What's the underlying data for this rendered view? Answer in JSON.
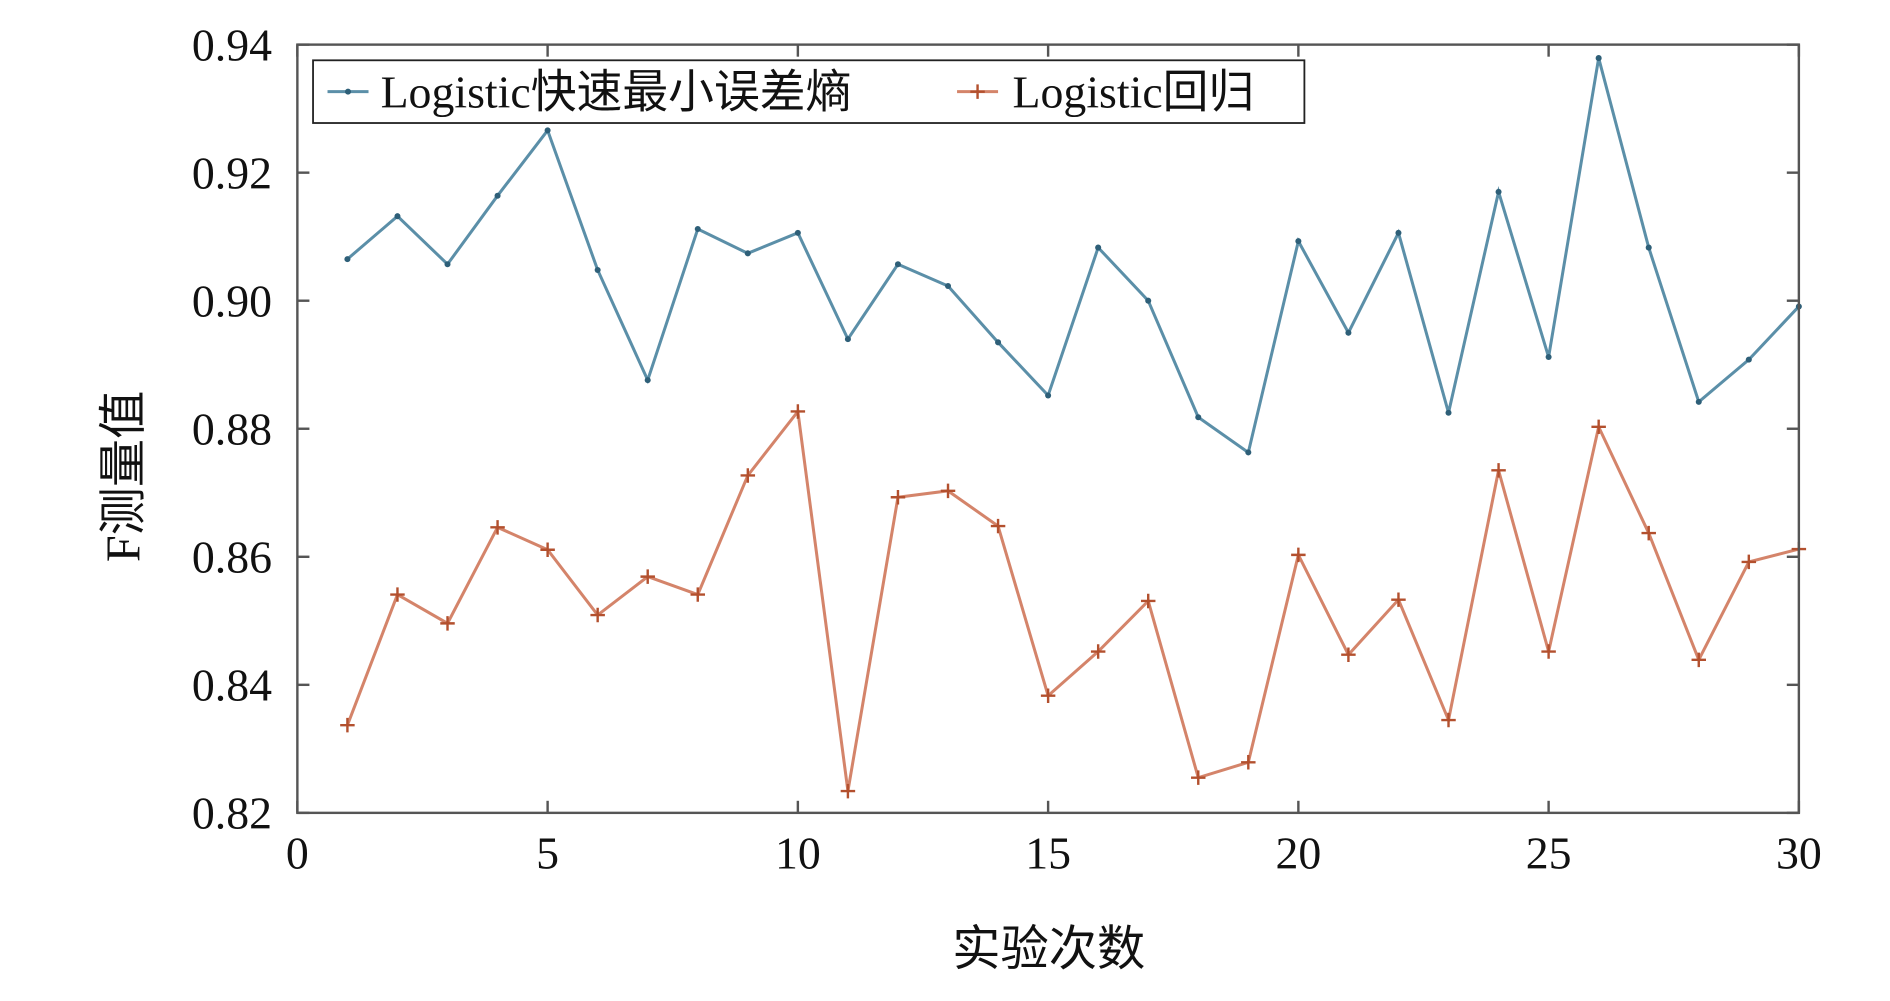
{
  "chart_data": {
    "type": "line",
    "xlabel": "实验次数",
    "ylabel": "F测量值",
    "xlim": [
      0,
      30
    ],
    "ylim": [
      0.82,
      0.94
    ],
    "xticks": [
      "0",
      "5",
      "10",
      "15",
      "20",
      "25",
      "30"
    ],
    "yticks": [
      "0.82",
      "0.84",
      "0.86",
      "0.88",
      "0.90",
      "0.92",
      "0.94"
    ],
    "grid": false,
    "legend_position": "top-left",
    "x": [
      1,
      2,
      3,
      4,
      5,
      6,
      7,
      8,
      9,
      10,
      11,
      12,
      13,
      14,
      15,
      16,
      17,
      18,
      19,
      20,
      21,
      22,
      23,
      24,
      25,
      26,
      27,
      28,
      29,
      30
    ],
    "series": [
      {
        "name": "Logistic快速最小误差熵",
        "color": "#5b8fa8",
        "marker": "dot",
        "values": [
          0.9065,
          0.9132,
          0.9057,
          0.9164,
          0.9266,
          0.9048,
          0.8876,
          0.9112,
          0.9074,
          0.9106,
          0.894,
          0.9057,
          0.9023,
          0.8935,
          0.8852,
          0.9083,
          0.9,
          0.8818,
          0.8763,
          0.9093,
          0.895,
          0.9106,
          0.8825,
          0.917,
          0.8912,
          0.9379,
          0.9083,
          0.8842,
          0.8908,
          0.8991
        ]
      },
      {
        "name": "Logistic回归",
        "color": "#d4846a",
        "marker": "plus",
        "values": [
          0.8337,
          0.8541,
          0.8496,
          0.8646,
          0.8611,
          0.8509,
          0.8569,
          0.8541,
          0.8727,
          0.8827,
          0.8234,
          0.8693,
          0.8703,
          0.8648,
          0.8383,
          0.8452,
          0.8531,
          0.8255,
          0.8279,
          0.8603,
          0.8447,
          0.8533,
          0.8345,
          0.8735,
          0.8452,
          0.8803,
          0.8637,
          0.8439,
          0.8592,
          0.8612
        ]
      }
    ]
  }
}
